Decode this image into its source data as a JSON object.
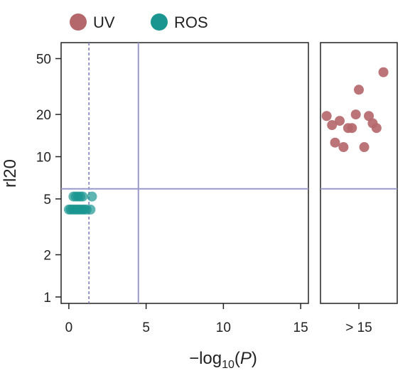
{
  "chart_data": {
    "type": "scatter",
    "xlabel": "−log10(P)",
    "ylabel": "rl20",
    "y_scale": "log",
    "legend_position": "top-left",
    "main_panel": {
      "xlim": [
        -0.5,
        15.5
      ],
      "ylim": [
        0.9,
        65
      ],
      "x_ticks": [
        0,
        5,
        10,
        15
      ],
      "x_tick_labels": [
        "0",
        "5",
        "10",
        "15"
      ],
      "y_ticks": [
        1,
        2,
        5,
        10,
        20,
        50
      ],
      "y_tick_labels": [
        "1",
        "2",
        "5",
        "10",
        "20",
        "50"
      ],
      "vline_dashed_x": 1.3,
      "vline_solid_x": 4.5,
      "hline_y": 5.9
    },
    "side_panel": {
      "x_label": "> 15",
      "hline_y": 5.9
    },
    "series": [
      {
        "name": "UV",
        "color": "#b5686c",
        "panel": "side",
        "points": [
          {
            "x": 0.08,
            "y": 19.5
          },
          {
            "x": 0.15,
            "y": 16.8
          },
          {
            "x": 0.19,
            "y": 12.6
          },
          {
            "x": 0.25,
            "y": 18.0
          },
          {
            "x": 0.3,
            "y": 11.7
          },
          {
            "x": 0.36,
            "y": 16.0
          },
          {
            "x": 0.41,
            "y": 16.0
          },
          {
            "x": 0.46,
            "y": 20.0
          },
          {
            "x": 0.5,
            "y": 30.0
          },
          {
            "x": 0.57,
            "y": 11.7
          },
          {
            "x": 0.63,
            "y": 19.5
          },
          {
            "x": 0.68,
            "y": 17.3
          },
          {
            "x": 0.73,
            "y": 16.0
          },
          {
            "x": 0.82,
            "y": 40.0
          }
        ]
      },
      {
        "name": "ROS",
        "color": "#1a9590",
        "panel": "main",
        "points": [
          {
            "x": 0.3,
            "y": 5.2
          },
          {
            "x": 0.45,
            "y": 5.2
          },
          {
            "x": 0.6,
            "y": 5.2
          },
          {
            "x": 0.75,
            "y": 5.2
          },
          {
            "x": 0.9,
            "y": 5.2
          },
          {
            "x": 1.5,
            "y": 5.2
          },
          {
            "x": 0.0,
            "y": 4.2
          },
          {
            "x": 0.12,
            "y": 4.2
          },
          {
            "x": 0.25,
            "y": 4.2
          },
          {
            "x": 0.38,
            "y": 4.2
          },
          {
            "x": 0.5,
            "y": 4.2
          },
          {
            "x": 0.62,
            "y": 4.2
          },
          {
            "x": 0.75,
            "y": 4.2
          },
          {
            "x": 0.88,
            "y": 4.2
          },
          {
            "x": 1.0,
            "y": 4.2
          },
          {
            "x": 1.15,
            "y": 4.2
          },
          {
            "x": 1.4,
            "y": 4.2
          }
        ]
      }
    ]
  }
}
